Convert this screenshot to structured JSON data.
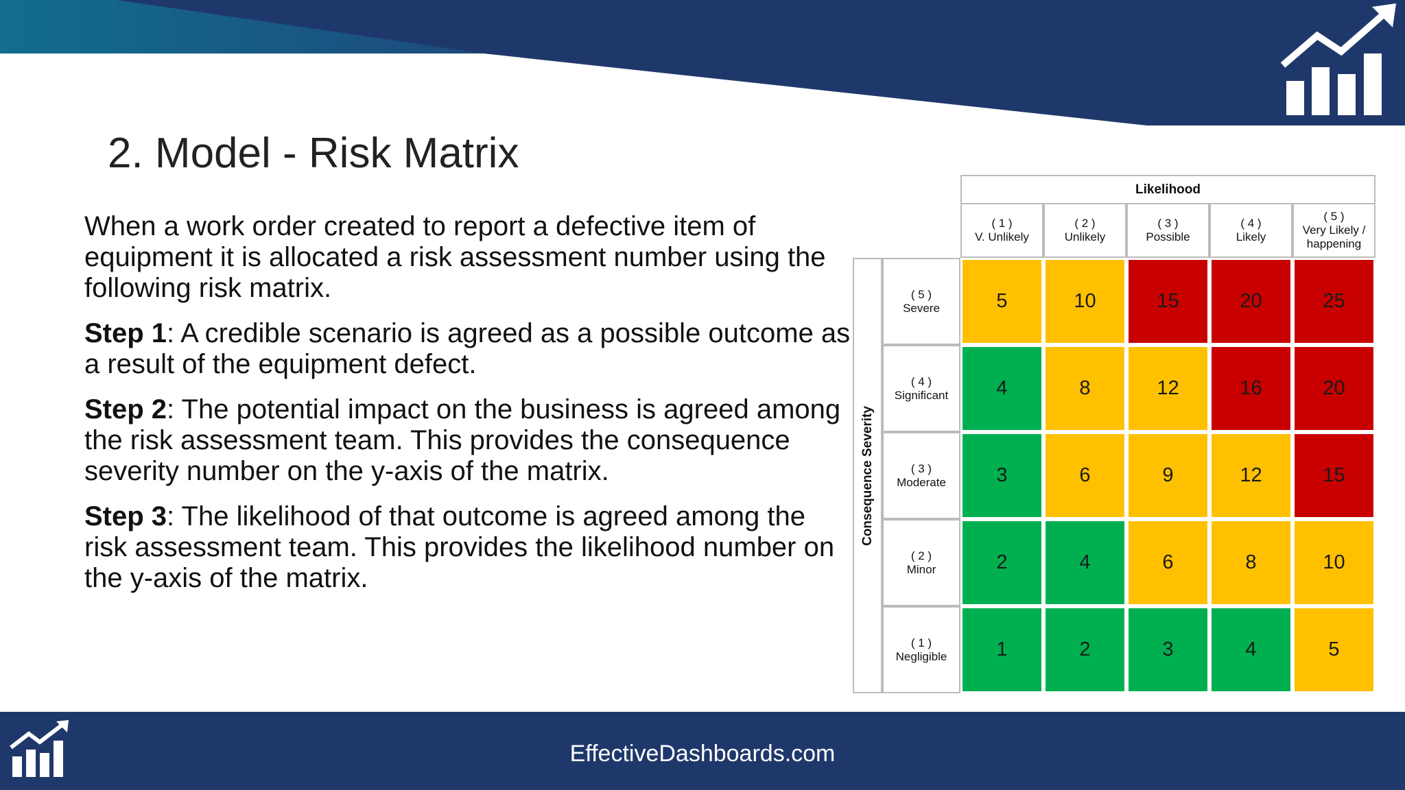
{
  "title": "2. Model - Risk Matrix",
  "paragraphs": [
    {
      "text": "When a work order created to report a defective item of equipment it is allocated a risk assessment number using the following risk matrix."
    },
    {
      "label": "Step 1",
      "text": ": A credible scenario is agreed as a possible outcome as a result of the equipment defect."
    },
    {
      "label": "Step 2",
      "text": ": The potential impact on the business is agreed among the risk assessment team. This provides the consequence severity number on the y-axis of the matrix."
    },
    {
      "label": "Step 3",
      "text": ": The likelihood of that outcome is agreed among the risk assessment team. This provides the likelihood number on the y-axis of the matrix."
    }
  ],
  "matrix": {
    "column_header": "Likelihood",
    "row_header": "Consequence Severity",
    "columns": [
      {
        "number": "( 1 )",
        "label": "V. Unlikely"
      },
      {
        "number": "( 2 )",
        "label": "Unlikely"
      },
      {
        "number": "( 3 )",
        "label": "Possible"
      },
      {
        "number": "( 4 )",
        "label": "Likely"
      },
      {
        "number": "( 5 )",
        "label": "Very Likely / happening"
      }
    ],
    "rows": [
      {
        "number": "( 5 )",
        "label": "Severe",
        "cells": [
          5,
          10,
          15,
          20,
          25
        ],
        "colors": [
          "#ffc000",
          "#ffc000",
          "#c80000",
          "#c80000",
          "#c80000"
        ]
      },
      {
        "number": "( 4 )",
        "label": "Significant",
        "cells": [
          4,
          8,
          12,
          16,
          20
        ],
        "colors": [
          "#00b050",
          "#ffc000",
          "#ffc000",
          "#c80000",
          "#c80000"
        ]
      },
      {
        "number": "( 3 )",
        "label": "Moderate",
        "cells": [
          3,
          6,
          9,
          12,
          15
        ],
        "colors": [
          "#00b050",
          "#ffc000",
          "#ffc000",
          "#ffc000",
          "#c80000"
        ]
      },
      {
        "number": "( 2 )",
        "label": "Minor",
        "cells": [
          2,
          4,
          6,
          8,
          10
        ],
        "colors": [
          "#00b050",
          "#00b050",
          "#ffc000",
          "#ffc000",
          "#ffc000"
        ]
      },
      {
        "number": "( 1 )",
        "label": "Negligible",
        "cells": [
          1,
          2,
          3,
          4,
          5
        ],
        "colors": [
          "#00b050",
          "#00b050",
          "#00b050",
          "#00b050",
          "#ffc000"
        ]
      }
    ]
  },
  "footer": "EffectiveDashboards.com"
}
